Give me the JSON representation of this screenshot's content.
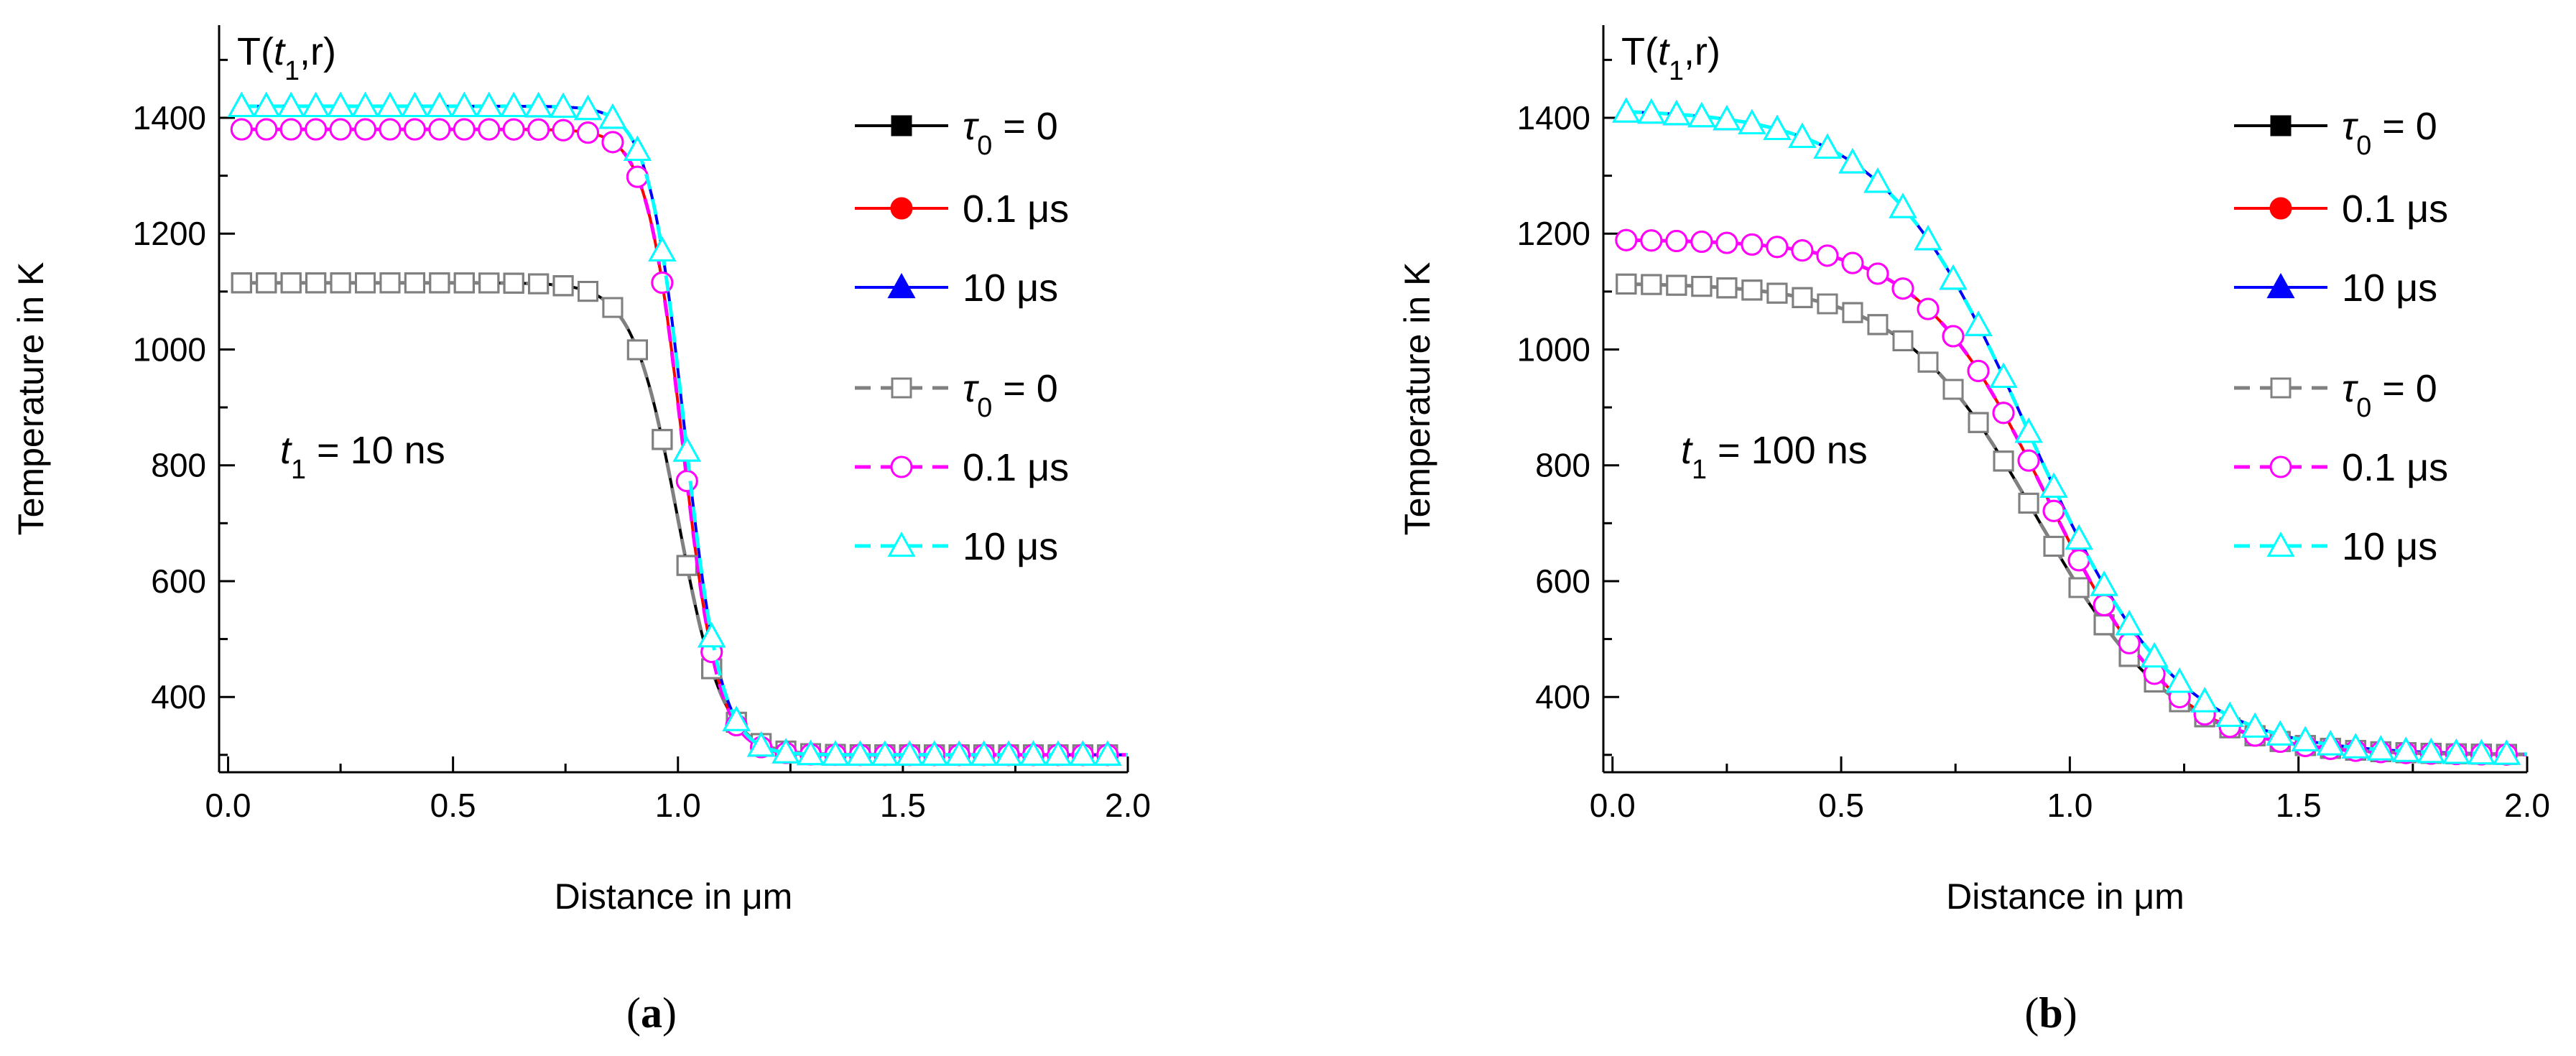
{
  "chart_data": [
    {
      "type": "line",
      "panel_label": "(a)",
      "corner_label": "T(t1,r)",
      "annotation": "t1 = 10 ns",
      "xlabel": "Distance in μm",
      "ylabel": "Temperature in K",
      "xlim": [
        -0.02,
        2.0
      ],
      "ylim": [
        270,
        1560
      ],
      "xticks": [
        "0.0",
        "0.5",
        "1.0",
        "1.5",
        "2.0"
      ],
      "yticks": [
        "400",
        "600",
        "800",
        "1000",
        "1200",
        "1400"
      ],
      "legend_placement": "top-right",
      "series": [
        {
          "name": "τ0 = 0",
          "style": "solid",
          "marker": "square-filled",
          "color": "#000000",
          "T_max": 1115,
          "r_half": 1.0,
          "width": 0.05,
          "T_min": 300
        },
        {
          "name": "0.1 μs",
          "style": "solid",
          "marker": "circle-filled",
          "color": "#ff0000",
          "T_max": 1380,
          "r_half": 1.01,
          "width": 0.04,
          "T_min": 300
        },
        {
          "name": "10 μs",
          "style": "solid",
          "marker": "triangle-filled",
          "color": "#0000ff",
          "T_max": 1420,
          "r_half": 1.015,
          "width": 0.04,
          "T_min": 300
        },
        {
          "name": "τ0 = 0",
          "style": "dashed",
          "marker": "square-open",
          "color": "#808080",
          "T_max": 1115,
          "r_half": 1.0,
          "width": 0.05,
          "T_min": 300
        },
        {
          "name": "0.1 μs",
          "style": "dashed",
          "marker": "circle-open",
          "color": "#ff00ff",
          "T_max": 1380,
          "r_half": 1.01,
          "width": 0.04,
          "T_min": 300
        },
        {
          "name": "10 μs",
          "style": "dashed",
          "marker": "triangle-open",
          "color": "#00ffff",
          "T_max": 1420,
          "r_half": 1.015,
          "width": 0.04,
          "T_min": 300
        }
      ]
    },
    {
      "type": "line",
      "panel_label": "(b)",
      "corner_label": "T(t1,r)",
      "annotation": "t1 = 100 ns",
      "xlabel": "Distance in μm",
      "ylabel": "Temperature in K",
      "xlim": [
        -0.02,
        2.0
      ],
      "ylim": [
        270,
        1560
      ],
      "xticks": [
        "0.0",
        "0.5",
        "1.0",
        "1.5",
        "2.0"
      ],
      "yticks": [
        "400",
        "600",
        "800",
        "1000",
        "1200",
        "1400"
      ],
      "legend_placement": "top-right",
      "series": [
        {
          "name": "τ0 = 0",
          "style": "solid",
          "marker": "square-filled",
          "color": "#000000",
          "T_max": 1115,
          "r_half": 0.93,
          "width": 0.15,
          "T_min": 300
        },
        {
          "name": "0.1 μs",
          "style": "solid",
          "marker": "circle-filled",
          "color": "#ff0000",
          "T_max": 1190,
          "r_half": 0.95,
          "width": 0.14,
          "T_min": 300
        },
        {
          "name": "10 μs",
          "style": "solid",
          "marker": "triangle-filled",
          "color": "#0000ff",
          "T_max": 1415,
          "r_half": 0.91,
          "width": 0.16,
          "T_min": 300
        },
        {
          "name": "τ0 = 0",
          "style": "dashed",
          "marker": "square-open",
          "color": "#808080",
          "T_max": 1115,
          "r_half": 0.93,
          "width": 0.15,
          "T_min": 300
        },
        {
          "name": "0.1 μs",
          "style": "dashed",
          "marker": "circle-open",
          "color": "#ff00ff",
          "T_max": 1190,
          "r_half": 0.95,
          "width": 0.14,
          "T_min": 300
        },
        {
          "name": "10 μs",
          "style": "dashed",
          "marker": "triangle-open",
          "color": "#00ffff",
          "T_max": 1415,
          "r_half": 0.91,
          "width": 0.16,
          "T_min": 300
        }
      ]
    }
  ]
}
